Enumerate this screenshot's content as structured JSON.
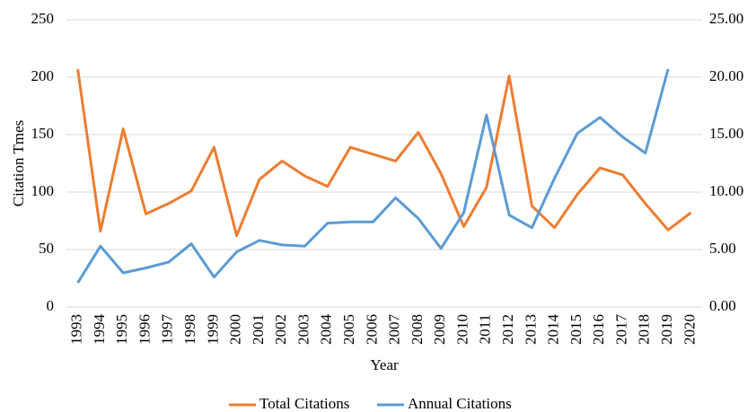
{
  "chart_data": {
    "type": "line",
    "x_label": "Year",
    "y_label": "Citation Tmes",
    "categories": [
      "1993",
      "1994",
      "1995",
      "1996",
      "1997",
      "1998",
      "1999",
      "2000",
      "2001",
      "2002",
      "2003",
      "2004",
      "2005",
      "2006",
      "2007",
      "2008",
      "2009",
      "2010",
      "2011",
      "2012",
      "2013",
      "2014",
      "2015",
      "2016",
      "2017",
      "2018",
      "2019",
      "2020"
    ],
    "series": [
      {
        "name": "Total Citations",
        "color": "#ed7d31",
        "values": [
          207,
          66,
          155,
          81,
          90,
          101,
          139,
          62,
          111,
          127,
          114,
          105,
          139,
          133,
          127,
          152,
          116,
          70,
          104,
          201,
          88,
          69,
          98,
          121,
          115,
          90,
          67,
          82
        ]
      },
      {
        "name": "Annual Citations",
        "color": "#5b9bd5",
        "axis": "y2",
        "values": [
          2.1,
          5.3,
          2.97,
          3.4,
          3.9,
          5.5,
          2.6,
          4.8,
          5.8,
          5.4,
          5.3,
          7.3,
          7.4,
          7.4,
          9.5,
          7.7,
          5.1,
          8.2,
          16.7,
          8.0,
          6.9,
          11.2,
          15.1,
          16.5,
          14.8,
          13.4,
          20.7,
          null
        ]
      }
    ],
    "ylim": [
      0,
      250
    ],
    "yticks": [
      0,
      50,
      100,
      150,
      200,
      250
    ],
    "y2lim": [
      0,
      25
    ],
    "y2ticks": [
      {
        "value": 0,
        "label": "0.00"
      },
      {
        "value": 5,
        "label": "5.00"
      },
      {
        "value": 10,
        "label": "10.00"
      },
      {
        "value": 15,
        "label": "15.00"
      },
      {
        "value": 20,
        "label": "20.00"
      },
      {
        "value": 25,
        "label": "25.00"
      }
    ],
    "grid": true,
    "legend": "bottom"
  }
}
